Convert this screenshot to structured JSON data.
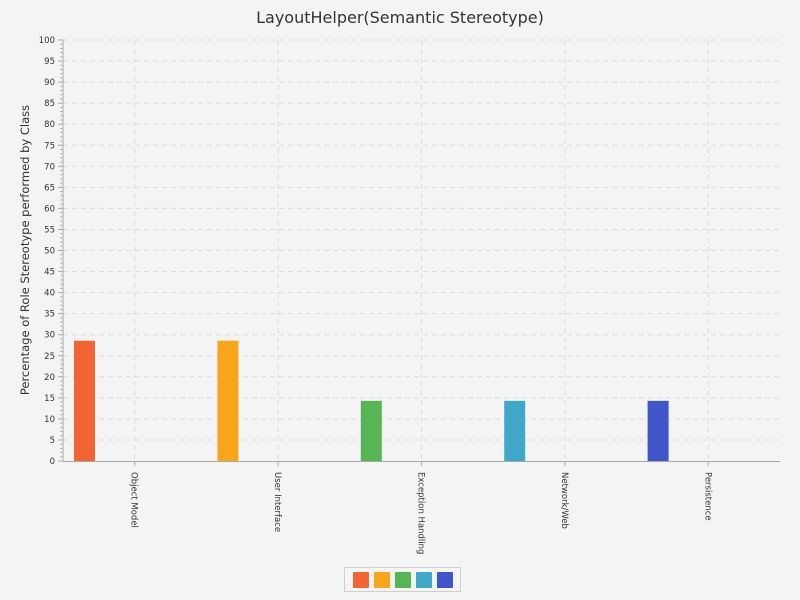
{
  "colors": {
    "background": "#f4f4f4",
    "grid": "#dcdcdc",
    "axis": "#a8a8a8",
    "text": "#333333"
  },
  "chart_data": {
    "type": "bar",
    "title": "LayoutHelper(Semantic Stereotype)",
    "xlabel": "",
    "ylabel": "Percentage of Role Stereotype performed by Class",
    "ylim": [
      0,
      100
    ],
    "ytick_step": 5,
    "grid": true,
    "legend_placement": "bottom-center",
    "categories": [
      "Object Model",
      "User Interface",
      "Exception Handling",
      "Network/Web",
      "Persistence"
    ],
    "values": [
      28.57,
      28.57,
      14.29,
      14.29,
      14.29
    ],
    "bar_colors": [
      "#f06533",
      "#f8a51b",
      "#56b554",
      "#41a7c9",
      "#3f55c8"
    ]
  },
  "legend": {
    "entries": [
      {
        "color": "#f06533"
      },
      {
        "color": "#f8a51b"
      },
      {
        "color": "#56b554"
      },
      {
        "color": "#41a7c9"
      },
      {
        "color": "#3f55c8"
      }
    ]
  }
}
